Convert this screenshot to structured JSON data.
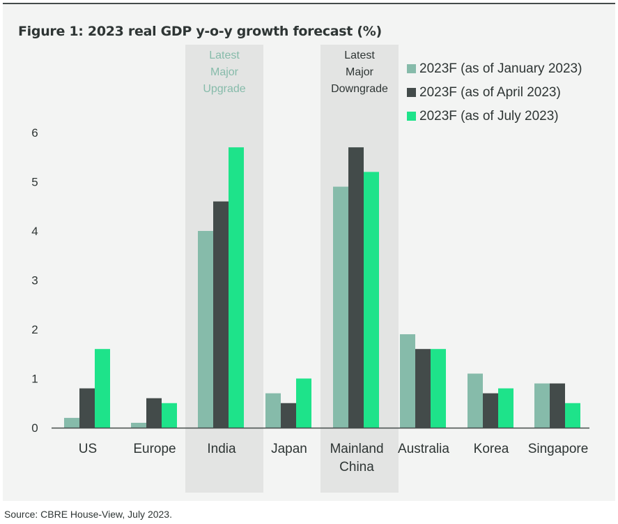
{
  "chart_data": {
    "type": "bar",
    "title": "Figure 1: 2023 real GDP y-o-y growth forecast (%)",
    "xlabel": "",
    "ylabel": "",
    "ylim": [
      0,
      6
    ],
    "yticks": [
      "0",
      "1",
      "2",
      "3",
      "4",
      "5",
      "6"
    ],
    "grid": false,
    "legend_position": "top-right",
    "categories": [
      "US",
      "Europe",
      "India",
      "Japan",
      "Mainland China",
      "Australia",
      "Korea",
      "Singapore"
    ],
    "category_lines": [
      [
        "US"
      ],
      [
        "Europe"
      ],
      [
        "India"
      ],
      [
        "Japan"
      ],
      [
        "Mainland",
        "China"
      ],
      [
        "Australia"
      ],
      [
        "Korea"
      ],
      [
        "Singapore"
      ]
    ],
    "series": [
      {
        "name": "2023F (as of January 2023)",
        "color": "#86bbaa",
        "values": [
          0.2,
          0.1,
          4.0,
          0.7,
          4.9,
          1.9,
          1.1,
          0.9
        ]
      },
      {
        "name": "2023F (as of April 2023)",
        "color": "#434b4a",
        "values": [
          0.8,
          0.6,
          4.6,
          0.5,
          5.7,
          1.6,
          0.7,
          0.9
        ]
      },
      {
        "name": "2023F (as of July 2023)",
        "color": "#1ee38a",
        "values": [
          1.6,
          0.5,
          5.7,
          1.0,
          5.2,
          1.6,
          0.8,
          0.5
        ]
      }
    ],
    "annotations": [
      {
        "category": "India",
        "lines": [
          "Latest",
          "Major",
          "Upgrade"
        ],
        "color": "#86bbaa"
      },
      {
        "category": "Mainland China",
        "lines": [
          "Latest",
          "Major",
          "Downgrade"
        ],
        "color": "#2e3534"
      }
    ]
  },
  "source": "Source: CBRE House-View, July 2023."
}
